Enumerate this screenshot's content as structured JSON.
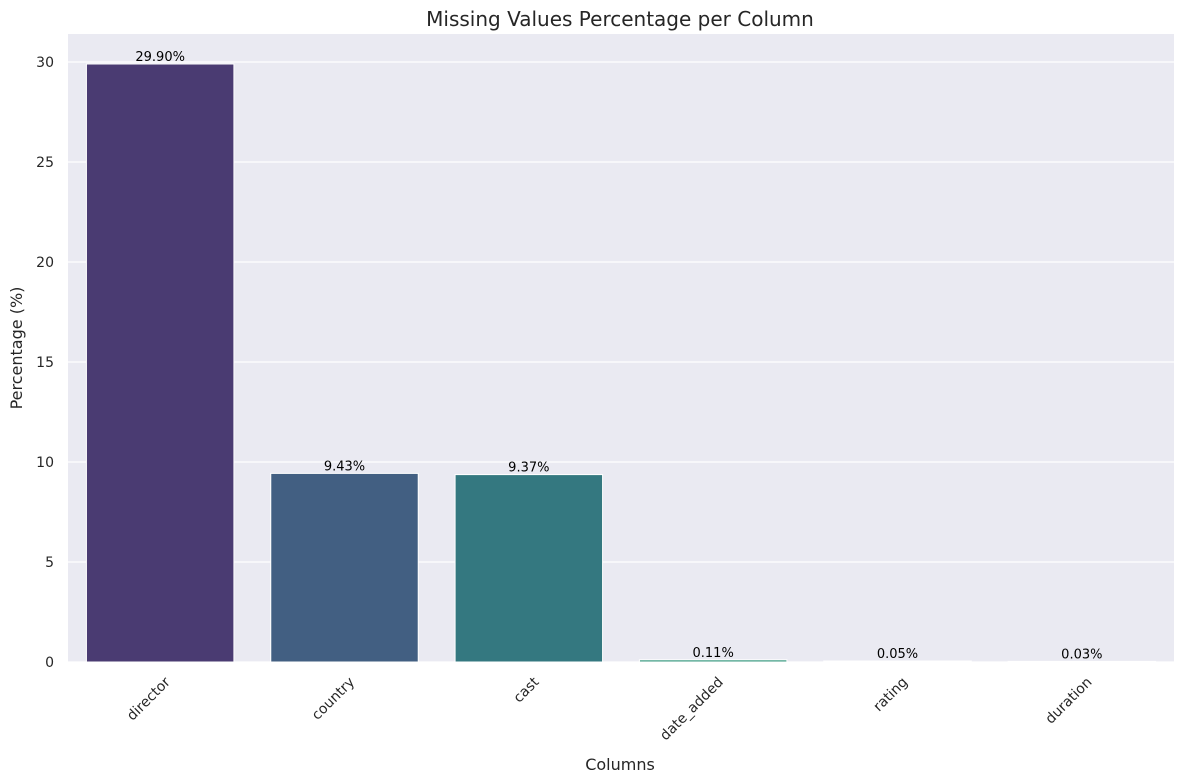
{
  "chart_data": {
    "type": "bar",
    "title": "Missing Values Percentage per Column",
    "xlabel": "Columns",
    "ylabel": "Percentage (%)",
    "categories": [
      "director",
      "country",
      "cast",
      "date_added",
      "rating",
      "duration"
    ],
    "values": [
      29.9,
      9.43,
      9.37,
      0.11,
      0.05,
      0.03
    ],
    "data_labels": [
      "29.90%",
      "9.43%",
      "9.37%",
      "0.11%",
      "0.05%",
      "0.03%"
    ],
    "colors": [
      "#4a3b72",
      "#425f82",
      "#347880",
      "#3a9a80",
      "#5cb87a",
      "#9dcf5a"
    ],
    "ylim": [
      0,
      31.4
    ],
    "yticks": [
      0,
      5,
      10,
      15,
      20,
      25,
      30
    ],
    "ytick_labels": [
      "0",
      "5",
      "10",
      "15",
      "20",
      "25",
      "30"
    ],
    "grid": true,
    "background": "#eaeaf2",
    "grid_color": "#ffffff"
  }
}
